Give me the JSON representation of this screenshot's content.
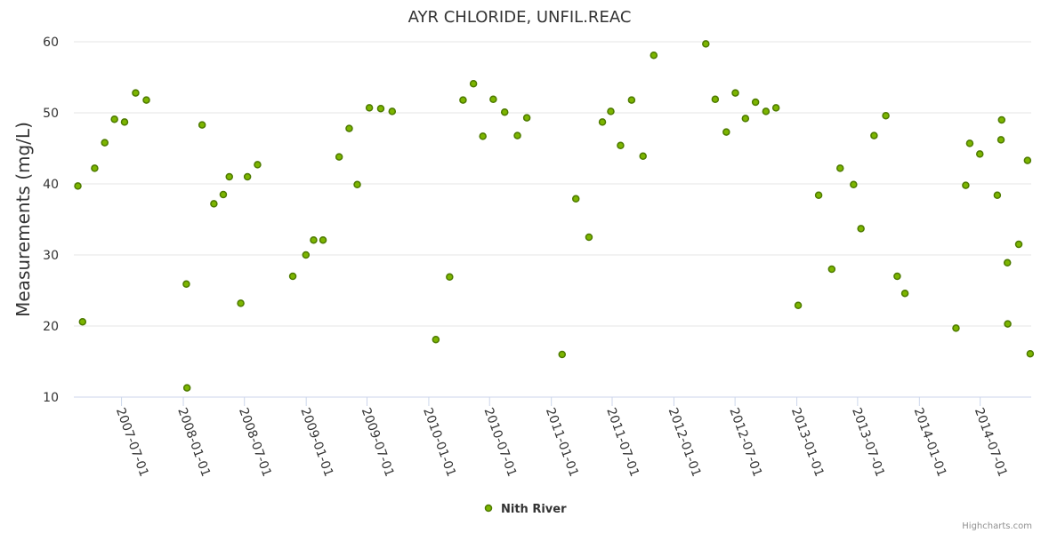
{
  "chart_data": {
    "type": "scatter",
    "title": "AYR CHLORIDE, UNFIL.REAC",
    "xlabel": "",
    "ylabel": "Measurements (mg/L)",
    "ylim": [
      10,
      60
    ],
    "yticks": [
      10,
      20,
      30,
      40,
      50,
      60
    ],
    "xlim": [
      "2007-02-09",
      "2014-11-30"
    ],
    "xticks": [
      "2007-07-01",
      "2008-01-01",
      "2008-07-01",
      "2009-01-01",
      "2009-07-01",
      "2010-01-01",
      "2010-07-01",
      "2011-01-01",
      "2011-07-01",
      "2012-01-01",
      "2012-07-01",
      "2013-01-01",
      "2013-07-01",
      "2014-01-01",
      "2014-07-01"
    ],
    "legend": "bottom-center",
    "grid": true,
    "series": [
      {
        "name": "Nith River",
        "color": "#7cb500",
        "points": [
          [
            "2007-02-21",
            39.7
          ],
          [
            "2007-03-07",
            20.6
          ],
          [
            "2007-04-12",
            42.2
          ],
          [
            "2007-05-12",
            45.8
          ],
          [
            "2007-06-10",
            49.1
          ],
          [
            "2007-07-10",
            48.7
          ],
          [
            "2007-08-12",
            52.8
          ],
          [
            "2007-09-13",
            51.8
          ],
          [
            "2008-01-10",
            25.9
          ],
          [
            "2008-01-12",
            11.3
          ],
          [
            "2008-02-26",
            48.3
          ],
          [
            "2008-04-01",
            37.2
          ],
          [
            "2008-04-29",
            38.5
          ],
          [
            "2008-05-17",
            41.0
          ],
          [
            "2008-06-20",
            23.2
          ],
          [
            "2008-07-10",
            41.0
          ],
          [
            "2008-08-09",
            42.7
          ],
          [
            "2008-11-22",
            27.0
          ],
          [
            "2008-12-31",
            30.0
          ],
          [
            "2009-01-23",
            32.1
          ],
          [
            "2009-02-20",
            32.1
          ],
          [
            "2009-04-09",
            43.8
          ],
          [
            "2009-05-09",
            47.8
          ],
          [
            "2009-06-02",
            39.9
          ],
          [
            "2009-07-08",
            50.7
          ],
          [
            "2009-08-11",
            50.6
          ],
          [
            "2009-09-14",
            50.2
          ],
          [
            "2010-01-22",
            18.1
          ],
          [
            "2010-03-04",
            26.9
          ],
          [
            "2010-04-13",
            51.8
          ],
          [
            "2010-05-14",
            54.1
          ],
          [
            "2010-06-11",
            46.7
          ],
          [
            "2010-07-12",
            51.9
          ],
          [
            "2010-08-15",
            50.1
          ],
          [
            "2010-09-22",
            46.8
          ],
          [
            "2010-10-20",
            49.3
          ],
          [
            "2011-02-02",
            16.0
          ],
          [
            "2011-03-15",
            37.9
          ],
          [
            "2011-04-23",
            32.5
          ],
          [
            "2011-06-02",
            48.7
          ],
          [
            "2011-06-27",
            50.2
          ],
          [
            "2011-07-26",
            45.4
          ],
          [
            "2011-08-28",
            51.8
          ],
          [
            "2011-10-01",
            43.9
          ],
          [
            "2011-11-02",
            58.1
          ],
          [
            "2012-04-05",
            59.7
          ],
          [
            "2012-05-03",
            51.9
          ],
          [
            "2012-06-05",
            47.3
          ],
          [
            "2012-07-02",
            52.8
          ],
          [
            "2012-08-01",
            49.2
          ],
          [
            "2012-08-31",
            51.5
          ],
          [
            "2012-10-01",
            50.2
          ],
          [
            "2012-10-31",
            50.7
          ],
          [
            "2013-01-05",
            22.9
          ],
          [
            "2013-03-07",
            38.4
          ],
          [
            "2013-04-15",
            28.0
          ],
          [
            "2013-05-10",
            42.2
          ],
          [
            "2013-06-19",
            39.9
          ],
          [
            "2013-07-11",
            33.7
          ],
          [
            "2013-08-19",
            46.8
          ],
          [
            "2013-09-23",
            49.6
          ],
          [
            "2013-10-27",
            27.0
          ],
          [
            "2013-11-19",
            24.6
          ],
          [
            "2014-04-20",
            19.7
          ],
          [
            "2014-05-19",
            39.8
          ],
          [
            "2014-05-31",
            45.7
          ],
          [
            "2014-06-30",
            44.2
          ],
          [
            "2014-08-21",
            38.4
          ],
          [
            "2014-09-01",
            46.2
          ],
          [
            "2014-09-03",
            49.0
          ],
          [
            "2014-09-20",
            28.9
          ],
          [
            "2014-09-21",
            20.3
          ],
          [
            "2014-10-24",
            31.5
          ],
          [
            "2014-11-19",
            43.3
          ],
          [
            "2014-11-27",
            16.1
          ]
        ]
      }
    ]
  },
  "credits": "Highcharts.com"
}
